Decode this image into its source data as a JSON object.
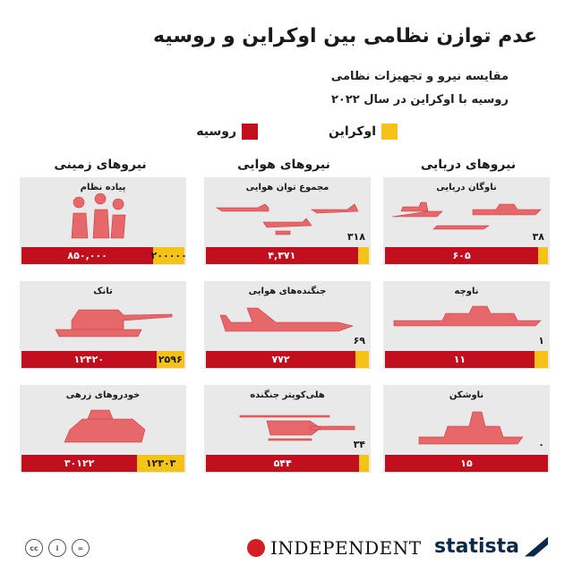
{
  "title": "عدم توازن نظامی بین اوکراین و روسیه",
  "subtitle1": "مقایسه نیرو و تجهیزات نظامی",
  "subtitle2": "روسیه با اوکراین در سال ۲۰۲۲",
  "legend": {
    "ukraine": {
      "label": "اوکراین",
      "color": "#f5c218"
    },
    "russia": {
      "label": "روسیه",
      "color": "#c20f1e"
    }
  },
  "columns": {
    "naval": "نیروهای دریایی",
    "air": "نیروهای هوایی",
    "land": "نیروهای زمینی"
  },
  "chart_data": {
    "type": "bar",
    "series": [
      {
        "name": "روسیه",
        "color": "#c20f1e"
      },
      {
        "name": "اوکراین",
        "color": "#f5c218"
      }
    ],
    "items": [
      {
        "key": "naval_fleet",
        "label": "ناوگان دریایی",
        "russia": 605,
        "ukraine": 38,
        "russia_label": "۶۰۵",
        "ukraine_label": "۳۸",
        "icon": "naval-fleet-icon"
      },
      {
        "key": "air_power",
        "label": "مجموع توان هوایی",
        "russia": 4371,
        "ukraine": 318,
        "russia_label": "۴,۳۷۱",
        "ukraine_label": "۳۱۸",
        "icon": "aircraft-group-icon"
      },
      {
        "key": "infantry",
        "label": "پیاده نظام",
        "russia": 850000,
        "ukraine": 200000,
        "russia_label": "۸۵۰,۰۰۰",
        "ukraine_label": "۲۰۰۰۰۰",
        "icon": "soldiers-icon"
      },
      {
        "key": "destroyer",
        "label": "ناوچه",
        "russia": 11,
        "ukraine": 1,
        "russia_label": "۱۱",
        "ukraine_label": "۱",
        "icon": "destroyer-icon"
      },
      {
        "key": "fighter",
        "label": "جنگنده‌های هوایی",
        "russia": 772,
        "ukraine": 69,
        "russia_label": "۷۷۲",
        "ukraine_label": "۶۹",
        "icon": "fighter-jet-icon"
      },
      {
        "key": "tank",
        "label": "تانک",
        "russia": 12420,
        "ukraine": 2596,
        "russia_label": "۱۲۴۲۰",
        "ukraine_label": "۲۵۹۶",
        "icon": "tank-icon"
      },
      {
        "key": "corvette",
        "label": "ناوشکن",
        "russia": 15,
        "ukraine": 0,
        "russia_label": "۱۵",
        "ukraine_label": "۰",
        "icon": "warship-icon"
      },
      {
        "key": "helicopter",
        "label": "هلی‌کوپتر جنگنده",
        "russia": 544,
        "ukraine": 34,
        "russia_label": "۵۴۴",
        "ukraine_label": "۳۴",
        "icon": "attack-helicopter-icon"
      },
      {
        "key": "armored",
        "label": "خودروهای زرهی",
        "russia": 30122,
        "ukraine": 12303,
        "russia_label": "۳۰۱۲۲",
        "ukraine_label": "۱۲۳۰۳",
        "icon": "armored-vehicle-icon"
      }
    ]
  },
  "footer": {
    "license_icons": [
      "cc-icon",
      "by-icon",
      "nd-icon"
    ],
    "license_text": [
      "cc",
      "i",
      "="
    ],
    "independent": "INDEPENDENT",
    "statista": "statista"
  }
}
